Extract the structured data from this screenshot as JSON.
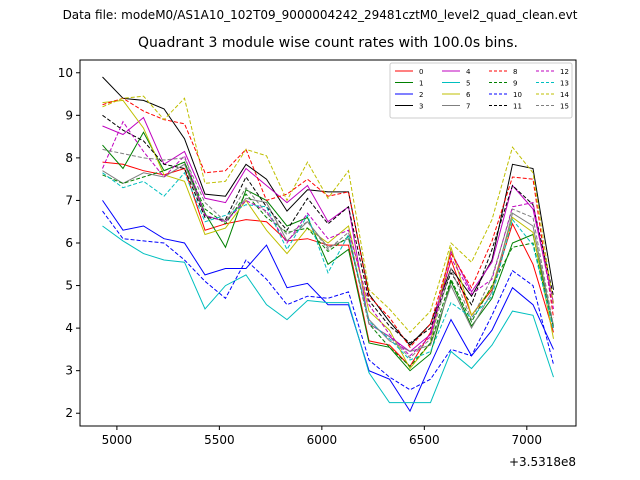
{
  "figure": {
    "suptitle": "Data file: modeM0/AS1A10_102T09_9000004242_29481cztM0_level2_quad_clean.evt"
  },
  "chart_data": {
    "type": "line",
    "title": "Quadrant 3 module wise count rates with 100.0s bins.",
    "xlabel": "",
    "ylabel": "",
    "x_offset_label": "+3.5318e8",
    "xlim": [
      4820,
      7240
    ],
    "ylim": [
      1.7,
      10.3
    ],
    "xticks": [
      5000,
      5500,
      6000,
      6500,
      7000
    ],
    "yticks": [
      2,
      3,
      4,
      5,
      6,
      7,
      8,
      9,
      10
    ],
    "x": [
      4930,
      5030,
      5130,
      5230,
      5330,
      5430,
      5530,
      5630,
      5730,
      5830,
      5930,
      6030,
      6130,
      6230,
      6330,
      6430,
      6530,
      6630,
      6730,
      6830,
      6930,
      7030,
      7130
    ],
    "legend_location": "upper right",
    "series": [
      {
        "name": "0",
        "color": "#ff0000",
        "dash": "solid",
        "values": [
          7.9,
          7.85,
          7.7,
          7.6,
          7.75,
          6.3,
          6.45,
          6.55,
          6.5,
          6.05,
          6.1,
          5.95,
          5.95,
          3.7,
          3.6,
          3.1,
          3.9,
          5.6,
          4.3,
          4.9,
          6.45,
          5.5,
          3.9
        ]
      },
      {
        "name": "1",
        "color": "#008000",
        "dash": "solid",
        "values": [
          8.3,
          7.75,
          8.6,
          7.7,
          7.9,
          6.7,
          5.9,
          7.25,
          7.0,
          6.4,
          6.6,
          5.5,
          5.85,
          3.65,
          3.55,
          3.0,
          3.4,
          5.1,
          4.05,
          4.7,
          6.0,
          6.2,
          4.05
        ]
      },
      {
        "name": "2",
        "color": "#0000ff",
        "dash": "solid",
        "values": [
          7.0,
          6.3,
          6.4,
          6.1,
          6.0,
          5.25,
          5.4,
          5.4,
          5.95,
          4.95,
          5.05,
          4.55,
          4.55,
          3.0,
          2.8,
          2.05,
          3.15,
          4.2,
          3.35,
          3.95,
          4.95,
          4.55,
          3.5
        ]
      },
      {
        "name": "3",
        "color": "#000000",
        "dash": "solid",
        "values": [
          9.9,
          9.4,
          9.35,
          9.15,
          8.45,
          7.15,
          7.1,
          7.85,
          7.5,
          6.75,
          7.25,
          7.2,
          7.2,
          4.8,
          4.15,
          3.6,
          4.1,
          5.4,
          4.75,
          5.6,
          7.85,
          7.75,
          4.9
        ]
      },
      {
        "name": "4",
        "color": "#bf00bf",
        "dash": "solid",
        "values": [
          8.75,
          8.55,
          8.95,
          7.85,
          8.15,
          7.05,
          6.95,
          7.75,
          7.35,
          6.95,
          7.35,
          6.5,
          6.85,
          4.1,
          3.8,
          3.45,
          3.85,
          5.8,
          4.85,
          5.55,
          7.35,
          6.8,
          4.6
        ]
      },
      {
        "name": "5",
        "color": "#00bfbf",
        "dash": "solid",
        "values": [
          6.4,
          6.05,
          5.75,
          5.6,
          5.55,
          4.45,
          5.0,
          5.25,
          4.55,
          4.2,
          4.65,
          4.6,
          4.6,
          2.95,
          2.25,
          2.25,
          2.25,
          3.45,
          3.05,
          3.6,
          4.4,
          4.3,
          2.85
        ]
      },
      {
        "name": "6",
        "color": "#bfbf00",
        "dash": "solid",
        "values": [
          9.3,
          9.35,
          8.7,
          7.6,
          7.45,
          6.2,
          6.35,
          7.0,
          6.3,
          5.75,
          6.35,
          6.0,
          6.4,
          4.4,
          3.95,
          3.05,
          3.65,
          5.9,
          4.3,
          4.95,
          6.6,
          6.25,
          3.75
        ]
      },
      {
        "name": "7",
        "color": "#7f7f7f",
        "dash": "solid",
        "values": [
          7.7,
          7.4,
          7.65,
          7.55,
          7.85,
          6.65,
          6.5,
          7.05,
          6.95,
          6.05,
          6.5,
          5.9,
          6.1,
          4.2,
          3.7,
          3.45,
          3.6,
          5.0,
          4.0,
          4.85,
          6.7,
          6.4,
          4.0
        ]
      },
      {
        "name": "8",
        "color": "#ff0000",
        "dash": "dashed",
        "values": [
          9.25,
          9.4,
          9.1,
          8.9,
          8.8,
          7.65,
          7.7,
          8.2,
          7.0,
          7.15,
          7.5,
          7.1,
          7.2,
          4.75,
          4.25,
          3.55,
          4.1,
          5.75,
          4.95,
          6.05,
          7.55,
          7.5,
          4.25
        ]
      },
      {
        "name": "9",
        "color": "#008000",
        "dash": "dashed",
        "values": [
          7.6,
          7.4,
          7.55,
          7.7,
          7.9,
          6.8,
          6.45,
          7.15,
          6.6,
          6.25,
          6.35,
          5.8,
          6.15,
          4.1,
          3.55,
          3.1,
          3.65,
          5.15,
          4.15,
          5.0,
          5.9,
          6.0,
          4.0
        ]
      },
      {
        "name": "10",
        "color": "#0000ff",
        "dash": "dashed",
        "values": [
          6.75,
          6.1,
          6.05,
          6.0,
          5.6,
          5.1,
          4.7,
          5.6,
          5.15,
          4.55,
          4.75,
          4.7,
          4.85,
          3.25,
          2.85,
          2.55,
          2.8,
          3.5,
          3.35,
          4.3,
          5.35,
          5.0,
          3.15
        ]
      },
      {
        "name": "11",
        "color": "#000000",
        "dash": "dashed",
        "values": [
          9.0,
          8.65,
          8.4,
          7.85,
          7.75,
          6.6,
          6.55,
          7.55,
          6.85,
          6.3,
          7.05,
          6.45,
          6.85,
          4.65,
          4.05,
          3.65,
          4.0,
          5.3,
          4.55,
          5.85,
          7.35,
          6.9,
          4.75
        ]
      },
      {
        "name": "12",
        "color": "#bf00bf",
        "dash": "dashed",
        "values": [
          7.75,
          8.85,
          8.15,
          7.55,
          8.05,
          6.65,
          6.5,
          7.0,
          6.75,
          6.0,
          6.7,
          6.1,
          6.3,
          4.55,
          3.85,
          3.35,
          3.8,
          5.65,
          4.8,
          5.15,
          6.85,
          6.95,
          4.45
        ]
      },
      {
        "name": "13",
        "color": "#00bfbf",
        "dash": "dashed",
        "values": [
          7.65,
          7.3,
          7.45,
          7.1,
          7.65,
          6.5,
          6.65,
          6.9,
          6.85,
          5.85,
          6.65,
          5.3,
          6.2,
          4.15,
          3.75,
          3.25,
          3.45,
          4.6,
          4.25,
          4.75,
          6.55,
          5.95,
          3.95
        ]
      },
      {
        "name": "14",
        "color": "#bfbf00",
        "dash": "dashed",
        "values": [
          9.2,
          9.4,
          9.45,
          8.9,
          9.4,
          7.4,
          7.45,
          8.2,
          8.05,
          7.0,
          7.9,
          7.05,
          7.7,
          4.9,
          4.45,
          3.9,
          4.4,
          6.0,
          5.55,
          6.55,
          8.25,
          7.65,
          4.55
        ]
      },
      {
        "name": "15",
        "color": "#7f7f7f",
        "dash": "dashed",
        "values": [
          8.2,
          8.1,
          8.0,
          7.95,
          8.0,
          6.95,
          6.5,
          7.3,
          6.7,
          6.2,
          6.5,
          5.85,
          6.25,
          4.1,
          3.8,
          3.3,
          3.75,
          5.4,
          4.2,
          5.2,
          6.8,
          6.6,
          4.05
        ]
      }
    ]
  }
}
